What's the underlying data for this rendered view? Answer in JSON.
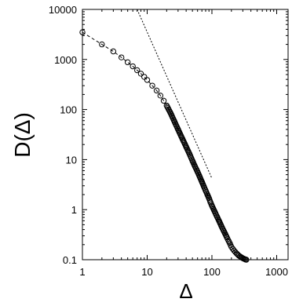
{
  "chart_data": {
    "type": "scatter",
    "title": "",
    "xlabel": "Δ",
    "ylabel": "D(Δ)",
    "xscale": "log",
    "yscale": "log",
    "xlim": [
      1,
      1500
    ],
    "ylim": [
      0.1,
      10000
    ],
    "xticks": [
      1,
      10,
      100,
      1000
    ],
    "xtick_labels": [
      "1",
      "10",
      "100",
      "1000"
    ],
    "yticks": [
      0.1,
      1,
      10,
      100,
      1000,
      10000
    ],
    "ytick_labels": [
      "0.1",
      "1",
      "10",
      "100",
      "1000",
      "10000"
    ],
    "grid": false,
    "legend": "none",
    "series": [
      {
        "style": "open circles joined by dashed line",
        "color": "#000000",
        "x": [
          1,
          2,
          3,
          4,
          5,
          6,
          7,
          8,
          9,
          10,
          12,
          14,
          16,
          18,
          20,
          23,
          26,
          30,
          35,
          40,
          45,
          50,
          55,
          60,
          65,
          70,
          75,
          80,
          85,
          90,
          95,
          100,
          110,
          120,
          130,
          140,
          150,
          160,
          170,
          180,
          190,
          200,
          210,
          220,
          230,
          240,
          250,
          260,
          270,
          280,
          290,
          300,
          310,
          320,
          330,
          340
        ],
        "y": [
          3500,
          2000,
          1450,
          1100,
          880,
          730,
          610,
          520,
          450,
          390,
          300,
          240,
          190,
          150,
          120,
          85,
          60,
          40,
          26,
          18,
          13,
          9.5,
          7.2,
          5.7,
          4.5,
          3.6,
          2.9,
          2.4,
          2.0,
          1.7,
          1.4,
          1.2,
          0.92,
          0.72,
          0.58,
          0.47,
          0.39,
          0.33,
          0.28,
          0.24,
          0.21,
          0.18,
          0.165,
          0.152,
          0.142,
          0.134,
          0.127,
          0.121,
          0.117,
          0.113,
          0.11,
          0.107,
          0.105,
          0.103,
          0.101,
          0.1
        ]
      },
      {
        "style": "dotted reference line",
        "color": "#000000",
        "x": [
          7,
          100
        ],
        "y": [
          10000,
          4.2
        ]
      }
    ]
  }
}
